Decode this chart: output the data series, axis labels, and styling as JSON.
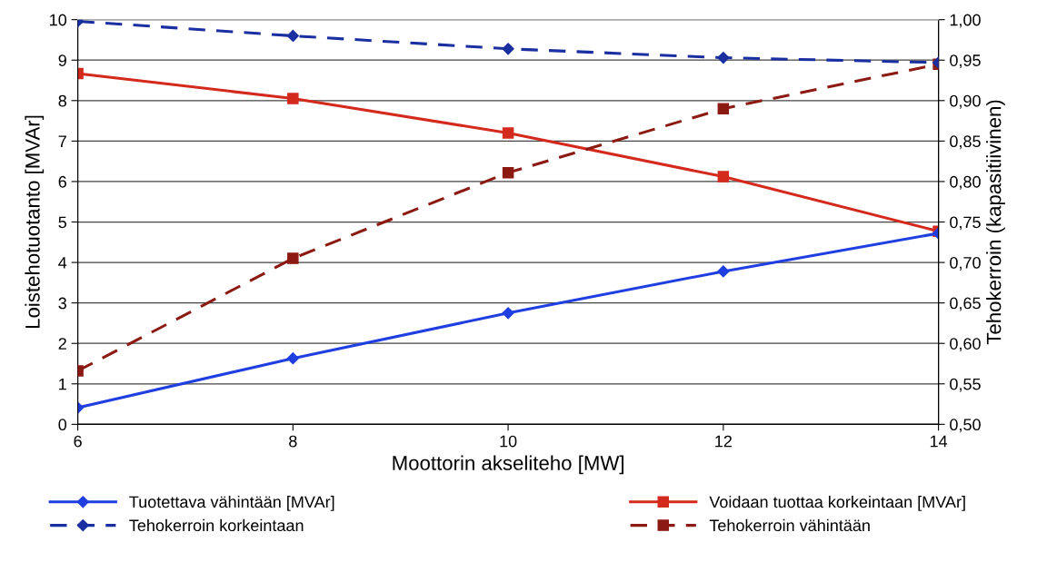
{
  "chart_data": {
    "type": "line",
    "xlabel": "Moottorin akseliteho [MW]",
    "ylabel": "Loistehotuotanto [MVAr]",
    "y2label": "Tehokerroin (kapasitiivinen)",
    "x": [
      6,
      8,
      10,
      12,
      14
    ],
    "series": [
      {
        "name": "Tuotettava vähintään [MVAr]",
        "color": "#1f3fe0",
        "values": [
          0.41,
          1.63,
          2.75,
          3.78,
          4.72
        ],
        "marker": "diamond",
        "line_style": "solid"
      },
      {
        "name": "Voidaan tuottaa korkeintaan [MVAr]",
        "color": "#d42a1e",
        "values": [
          8.67,
          8.05,
          7.2,
          6.12,
          4.77
        ],
        "marker": "square",
        "line_style": "solid"
      },
      {
        "name": "Tehokerroin korkeintaan",
        "color": "#1a2fa0",
        "values": [
          0.998,
          0.98,
          0.964,
          0.953,
          0.947
        ],
        "marker": "diamond",
        "line_style": "dashed",
        "axis": "y2"
      },
      {
        "name": "Tehokerroin vähintään",
        "color": "#8b1a12",
        "values": [
          0.566,
          0.705,
          0.811,
          0.89,
          0.945
        ],
        "marker": "square",
        "line_style": "dashed",
        "axis": "y2"
      }
    ],
    "xlim": [
      6,
      14
    ],
    "xticks": [
      6,
      8,
      10,
      12,
      14
    ],
    "ylim": [
      0,
      10
    ],
    "yticks": [
      0,
      1,
      2,
      3,
      4,
      5,
      6,
      7,
      8,
      9,
      10
    ],
    "y2lim": [
      0.5,
      1.0
    ],
    "y2ticks": [
      {
        "value": 0.5,
        "label": "0,50"
      },
      {
        "value": 0.55,
        "label": "0,55"
      },
      {
        "value": 0.6,
        "label": "0,60"
      },
      {
        "value": 0.65,
        "label": "0,65"
      },
      {
        "value": 0.7,
        "label": "0,70"
      },
      {
        "value": 0.75,
        "label": "0,75"
      },
      {
        "value": 0.8,
        "label": "0,80"
      },
      {
        "value": 0.85,
        "label": "0,85"
      },
      {
        "value": 0.9,
        "label": "0,90"
      },
      {
        "value": 0.95,
        "label": "0,95"
      },
      {
        "value": 1.0,
        "label": "1,00"
      }
    ],
    "grid": "y",
    "legend": "bottom"
  }
}
